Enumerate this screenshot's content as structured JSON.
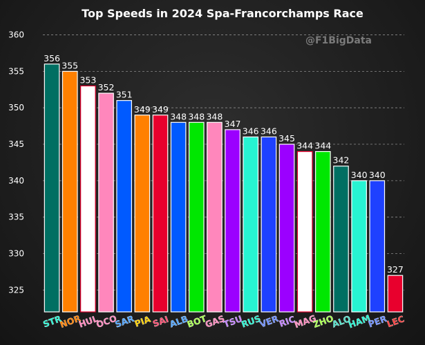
{
  "chart_data": {
    "type": "bar",
    "title": "Top Speeds in 2024 Spa-Francorchamps Race",
    "watermark": "@F1BigData",
    "xlabel": "",
    "ylabel": "",
    "ylim": [
      322,
      361
    ],
    "yticks": [
      325,
      330,
      335,
      340,
      345,
      350,
      355,
      360
    ],
    "grid": "horizontal dashed",
    "legend": "none",
    "categories": [
      "STR",
      "NOR",
      "HUL",
      "OCO",
      "SAR",
      "PIA",
      "SAI",
      "ALB",
      "BOT",
      "GAS",
      "TSU",
      "RUS",
      "VER",
      "RIC",
      "MAG",
      "ZHO",
      "ALO",
      "HAM",
      "PER",
      "LEC"
    ],
    "values": [
      356,
      355,
      353,
      352,
      351,
      349,
      349,
      348,
      348,
      348,
      347,
      346,
      346,
      345,
      344,
      344,
      342,
      340,
      340,
      327
    ],
    "colors": [
      "#006f62",
      "#ff8000",
      "#ffffff",
      "#ff87bc",
      "#005aff",
      "#ff8000",
      "#e8002d",
      "#005aff",
      "#00e701",
      "#ff87bc",
      "#9b00ff",
      "#27f4d2",
      "#1e41ff",
      "#9b00ff",
      "#ffffff",
      "#00e701",
      "#006f62",
      "#27f4d2",
      "#1e41ff",
      "#e8002d"
    ],
    "label_colors": [
      "#27f4d2",
      "#ff8000",
      "#ff87bc",
      "#ff87bc",
      "#4da3ff",
      "#ffd000",
      "#ff4a6e",
      "#4da3ff",
      "#a6ff4d",
      "#ff87bc",
      "#c080ff",
      "#27f4d2",
      "#6a8cff",
      "#c080ff",
      "#ff87bc",
      "#a6ff4d",
      "#4de0c8",
      "#27f4d2",
      "#6a8cff",
      "#ff3b3b"
    ],
    "edge_colors": [
      "#ffffff",
      "#ffffff",
      "#e8002d",
      "#ffffff",
      "#ffffff",
      "#ffffff",
      "#ffffff",
      "#ffffff",
      "#ffffff",
      "#ffffff",
      "#ffffff",
      "#ffffff",
      "#ffffff",
      "#ffffff",
      "#e8002d",
      "#ffffff",
      "#ffffff",
      "#ffffff",
      "#ffffff",
      "#ffffff"
    ]
  }
}
